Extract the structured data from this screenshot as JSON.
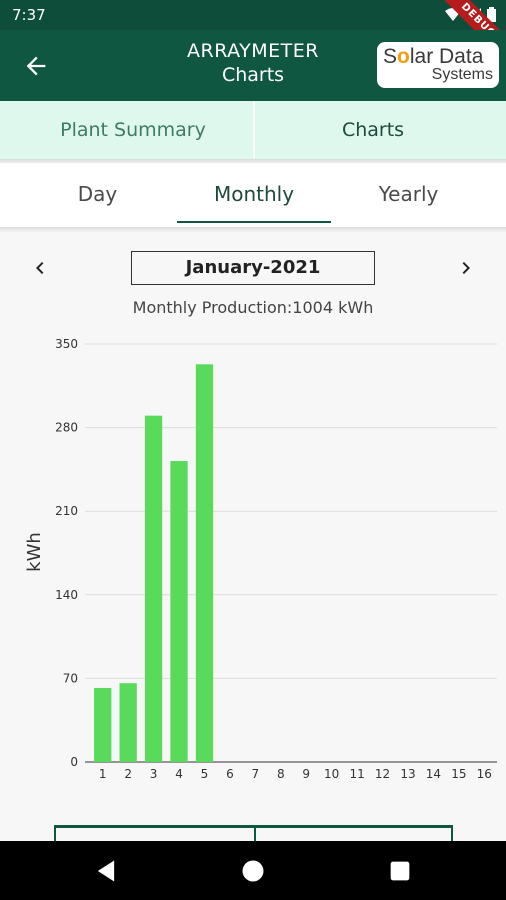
{
  "status_bar": {
    "time": "7:37",
    "debug_label": "DEBUG"
  },
  "app_bar": {
    "title": "ARRAYMETER",
    "subtitle": "Charts",
    "logo_line1_pre": "S",
    "logo_line1_o": "o",
    "logo_line1_post": "lar Data",
    "logo_line2": "Systems"
  },
  "top_tabs": [
    {
      "label": "Plant Summary"
    },
    {
      "label": "Charts"
    }
  ],
  "period_tabs": [
    {
      "label": "Day"
    },
    {
      "label": "Monthly"
    },
    {
      "label": "Yearly"
    }
  ],
  "period_selector": {
    "current": "January-2021"
  },
  "production": {
    "label": "Monthly Production:1004 kWh"
  },
  "colors": {
    "primary": "#0f5741",
    "bar": "#5ada5a",
    "tab_bg": "#dff8ee"
  },
  "chart_data": {
    "type": "bar",
    "categories": [
      "1",
      "2",
      "3",
      "4",
      "5",
      "6",
      "7",
      "8",
      "9",
      "10",
      "11",
      "12",
      "13",
      "14",
      "15",
      "16"
    ],
    "values": [
      62,
      66,
      290,
      252,
      333,
      0,
      0,
      0,
      0,
      0,
      0,
      0,
      0,
      0,
      0,
      0
    ],
    "ylabel": "kWh",
    "ylim": [
      0,
      350
    ],
    "yticks": [
      0,
      70,
      140,
      210,
      280,
      350
    ],
    "grid": true,
    "legend": "none"
  }
}
